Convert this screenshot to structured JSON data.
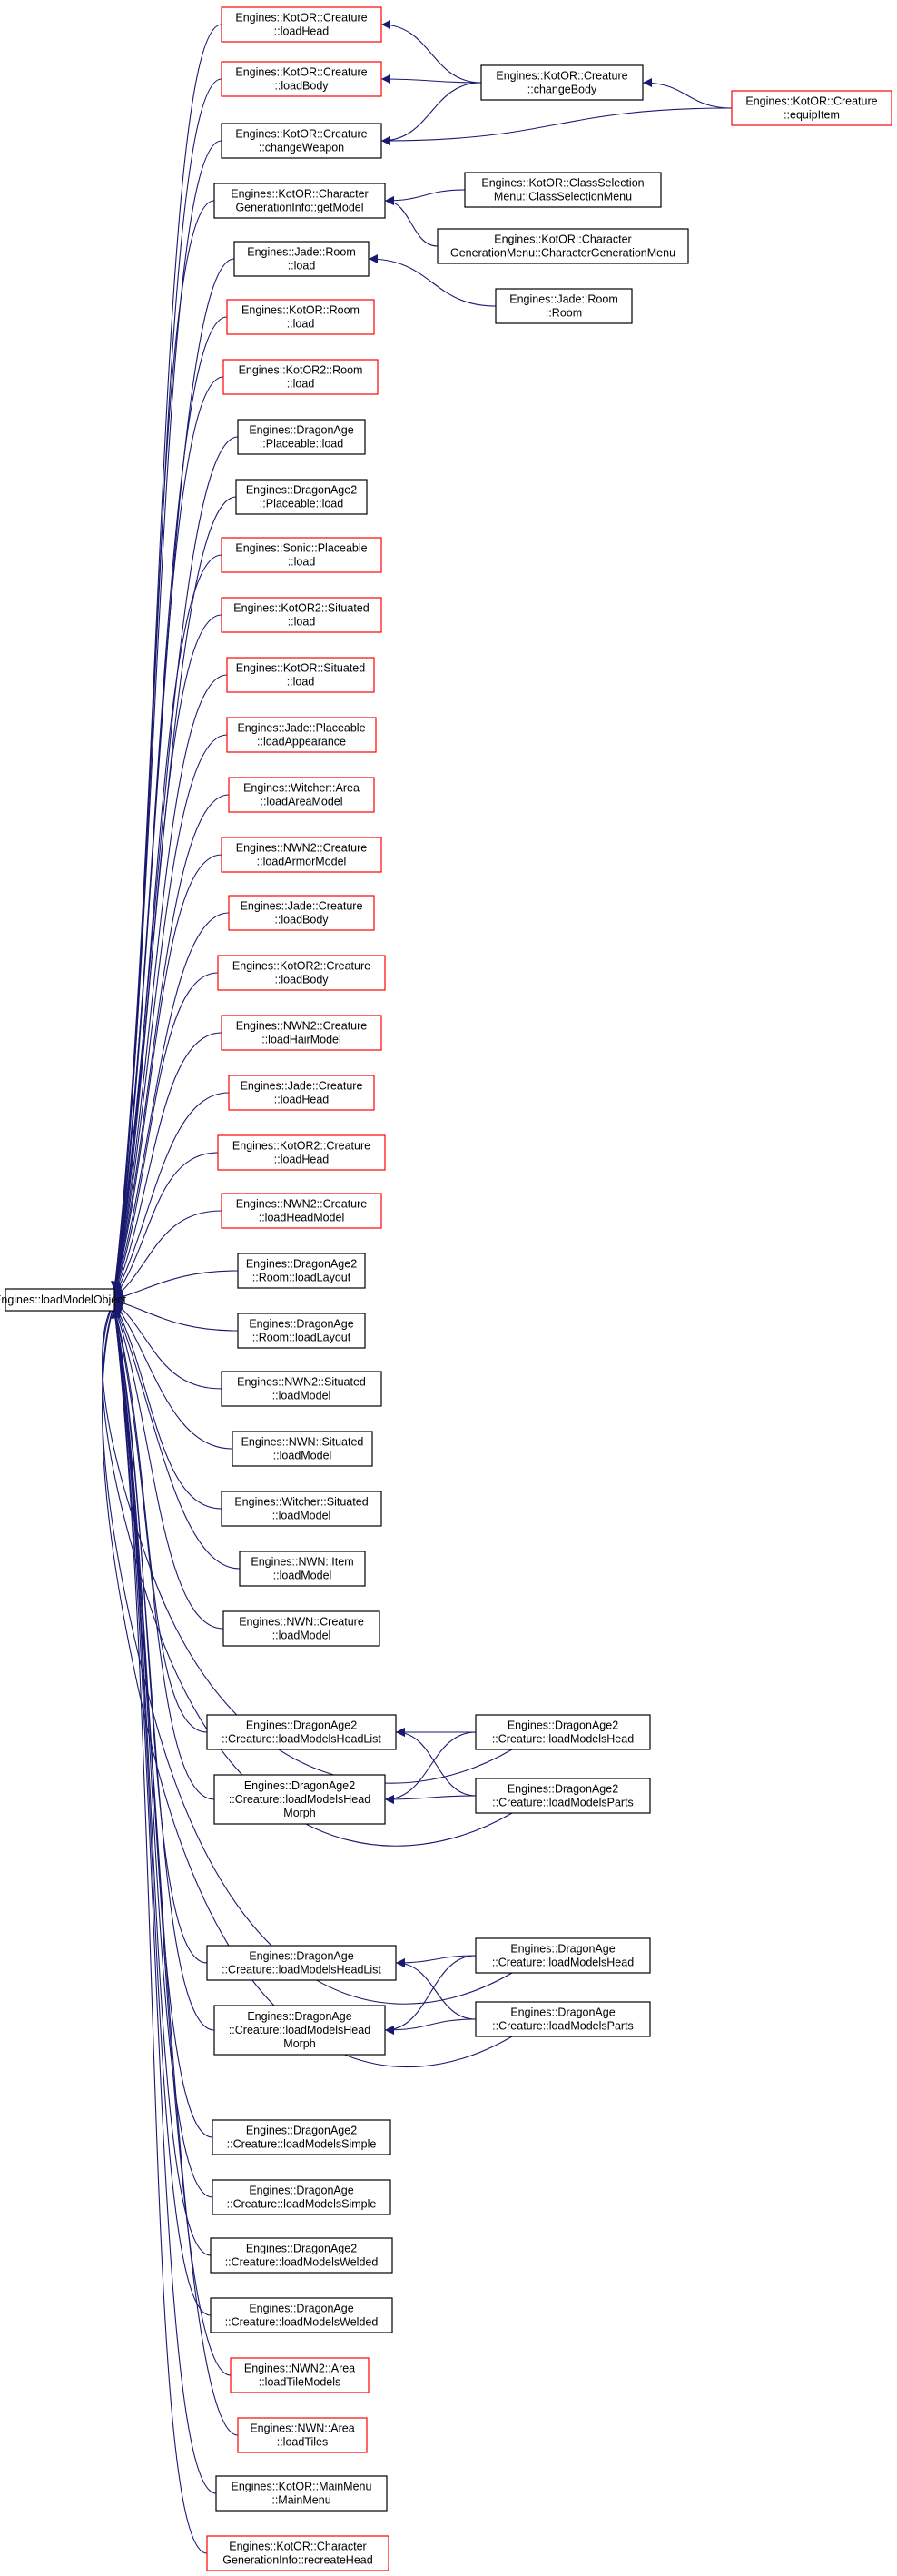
{
  "colors": {
    "edge": "#191970",
    "root_fill": "#bfbfbf",
    "border_normal": "#000000",
    "border_truncated": "#ff0000"
  },
  "root": {
    "id": "root",
    "lines": [
      "Engines::loadModelObject"
    ]
  },
  "nodes": [
    {
      "id": "n1",
      "lines": [
        "Engines::KotOR::Creature",
        "::loadHead"
      ],
      "red": true
    },
    {
      "id": "n2",
      "lines": [
        "Engines::KotOR::Creature",
        "::loadBody"
      ],
      "red": true
    },
    {
      "id": "n3",
      "lines": [
        "Engines::KotOR::Creature",
        "::changeWeapon"
      ],
      "red": false
    },
    {
      "id": "n4",
      "lines": [
        "Engines::KotOR::Character",
        "GenerationInfo::getModel"
      ],
      "red": false
    },
    {
      "id": "n5",
      "lines": [
        "Engines::Jade::Room",
        "::load"
      ],
      "red": false
    },
    {
      "id": "n6",
      "lines": [
        "Engines::KotOR::Room",
        "::load"
      ],
      "red": true
    },
    {
      "id": "n7",
      "lines": [
        "Engines::KotOR2::Room",
        "::load"
      ],
      "red": true
    },
    {
      "id": "n8",
      "lines": [
        "Engines::DragonAge",
        "::Placeable::load"
      ],
      "red": false
    },
    {
      "id": "n9",
      "lines": [
        "Engines::DragonAge2",
        "::Placeable::load"
      ],
      "red": false
    },
    {
      "id": "n10",
      "lines": [
        "Engines::Sonic::Placeable",
        "::load"
      ],
      "red": true
    },
    {
      "id": "n11",
      "lines": [
        "Engines::KotOR2::Situated",
        "::load"
      ],
      "red": true
    },
    {
      "id": "n12",
      "lines": [
        "Engines::KotOR::Situated",
        "::load"
      ],
      "red": true
    },
    {
      "id": "n13",
      "lines": [
        "Engines::Jade::Placeable",
        "::loadAppearance"
      ],
      "red": true
    },
    {
      "id": "n14",
      "lines": [
        "Engines::Witcher::Area",
        "::loadAreaModel"
      ],
      "red": true
    },
    {
      "id": "n15",
      "lines": [
        "Engines::NWN2::Creature",
        "::loadArmorModel"
      ],
      "red": true
    },
    {
      "id": "n16",
      "lines": [
        "Engines::Jade::Creature",
        "::loadBody"
      ],
      "red": true
    },
    {
      "id": "n17",
      "lines": [
        "Engines::KotOR2::Creature",
        "::loadBody"
      ],
      "red": true
    },
    {
      "id": "n18",
      "lines": [
        "Engines::NWN2::Creature",
        "::loadHairModel"
      ],
      "red": true
    },
    {
      "id": "n19",
      "lines": [
        "Engines::Jade::Creature",
        "::loadHead"
      ],
      "red": true
    },
    {
      "id": "n20",
      "lines": [
        "Engines::KotOR2::Creature",
        "::loadHead"
      ],
      "red": true
    },
    {
      "id": "n21",
      "lines": [
        "Engines::NWN2::Creature",
        "::loadHeadModel"
      ],
      "red": true
    },
    {
      "id": "n22",
      "lines": [
        "Engines::DragonAge2",
        "::Room::loadLayout"
      ],
      "red": false
    },
    {
      "id": "n23",
      "lines": [
        "Engines::DragonAge",
        "::Room::loadLayout"
      ],
      "red": false
    },
    {
      "id": "n24",
      "lines": [
        "Engines::NWN2::Situated",
        "::loadModel"
      ],
      "red": false
    },
    {
      "id": "n25",
      "lines": [
        "Engines::NWN::Situated",
        "::loadModel"
      ],
      "red": false
    },
    {
      "id": "n26",
      "lines": [
        "Engines::Witcher::Situated",
        "::loadModel"
      ],
      "red": false
    },
    {
      "id": "n27",
      "lines": [
        "Engines::NWN::Item",
        "::loadModel"
      ],
      "red": false
    },
    {
      "id": "n28",
      "lines": [
        "Engines::NWN::Creature",
        "::loadModel"
      ],
      "red": false
    },
    {
      "id": "n29",
      "lines": [
        "Engines::DragonAge2",
        "::Creature::loadModelsHeadList"
      ],
      "red": false
    },
    {
      "id": "n30",
      "lines": [
        "Engines::DragonAge2",
        "::Creature::loadModelsHead",
        "Morph"
      ],
      "red": false
    },
    {
      "id": "n31",
      "lines": [
        "Engines::DragonAge",
        "::Creature::loadModelsHeadList"
      ],
      "red": false
    },
    {
      "id": "n32",
      "lines": [
        "Engines::DragonAge",
        "::Creature::loadModelsHead",
        "Morph"
      ],
      "red": false
    },
    {
      "id": "n33",
      "lines": [
        "Engines::DragonAge2",
        "::Creature::loadModelsSimple"
      ],
      "red": false
    },
    {
      "id": "n34",
      "lines": [
        "Engines::DragonAge",
        "::Creature::loadModelsSimple"
      ],
      "red": false
    },
    {
      "id": "n35",
      "lines": [
        "Engines::DragonAge2",
        "::Creature::loadModelsWelded"
      ],
      "red": false
    },
    {
      "id": "n36",
      "lines": [
        "Engines::DragonAge",
        "::Creature::loadModelsWelded"
      ],
      "red": false
    },
    {
      "id": "n37",
      "lines": [
        "Engines::NWN2::Area",
        "::loadTileModels"
      ],
      "red": true
    },
    {
      "id": "n38",
      "lines": [
        "Engines::NWN::Area",
        "::loadTiles"
      ],
      "red": true
    },
    {
      "id": "n39",
      "lines": [
        "Engines::KotOR::MainMenu",
        "::MainMenu"
      ],
      "red": false
    },
    {
      "id": "n40",
      "lines": [
        "Engines::KotOR::Character",
        "GenerationInfo::recreateHead"
      ],
      "red": true
    },
    {
      "id": "m1",
      "lines": [
        "Engines::KotOR::Creature",
        "::changeBody"
      ],
      "red": false
    },
    {
      "id": "m2",
      "lines": [
        "Engines::KotOR::ClassSelection",
        "Menu::ClassSelectionMenu"
      ],
      "red": false
    },
    {
      "id": "m3",
      "lines": [
        "Engines::KotOR::Character",
        "GenerationMenu::CharacterGenerationMenu"
      ],
      "red": false
    },
    {
      "id": "m4",
      "lines": [
        "Engines::Jade::Room",
        "::Room"
      ],
      "red": false
    },
    {
      "id": "m5",
      "lines": [
        "Engines::DragonAge2",
        "::Creature::loadModelsHead"
      ],
      "red": false
    },
    {
      "id": "m6",
      "lines": [
        "Engines::DragonAge2",
        "::Creature::loadModelsParts"
      ],
      "red": false
    },
    {
      "id": "m7",
      "lines": [
        "Engines::DragonAge",
        "::Creature::loadModelsHead"
      ],
      "red": false
    },
    {
      "id": "m8",
      "lines": [
        "Engines::DragonAge",
        "::Creature::loadModelsParts"
      ],
      "red": false
    },
    {
      "id": "e1",
      "lines": [
        "Engines::KotOR::Creature",
        "::equipItem"
      ],
      "red": true
    }
  ],
  "edges": [
    [
      "n1",
      "m1"
    ],
    [
      "n2",
      "m1"
    ],
    [
      "n3",
      "m1"
    ],
    [
      "n3",
      "e1"
    ],
    [
      "m1",
      "e1"
    ],
    [
      "n4",
      "m2"
    ],
    [
      "n4",
      "m3"
    ],
    [
      "n5",
      "m4"
    ],
    [
      "n29",
      "m5"
    ],
    [
      "n29",
      "m6"
    ],
    [
      "n30",
      "m5"
    ],
    [
      "n30",
      "m6"
    ],
    [
      "n31",
      "m7"
    ],
    [
      "n31",
      "m8"
    ],
    [
      "n32",
      "m7"
    ],
    [
      "n32",
      "m8"
    ],
    [
      "root",
      "m5"
    ],
    [
      "root",
      "m6"
    ],
    [
      "root",
      "m7"
    ],
    [
      "root",
      "m8"
    ]
  ]
}
